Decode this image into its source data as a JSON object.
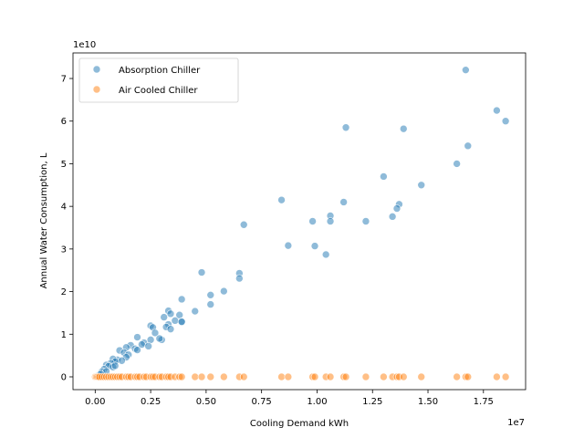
{
  "chart_data": {
    "type": "scatter",
    "xlabel": "Cooling Demand kWh",
    "ylabel": "Annual Water Consumption, L",
    "x_offset_label": "1e7",
    "y_offset_label": "1e10",
    "xlim": [
      -1000000,
      19400000
    ],
    "ylim": [
      -3000000000,
      76000000000
    ],
    "x_ticks": [
      0,
      2500000,
      5000000,
      7500000,
      10000000,
      12500000,
      15000000,
      17500000
    ],
    "x_tick_labels": [
      "0.00",
      "0.25",
      "0.50",
      "0.75",
      "1.00",
      "1.25",
      "1.50",
      "1.75"
    ],
    "y_ticks": [
      0,
      10000000000,
      20000000000,
      30000000000,
      40000000000,
      50000000000,
      60000000000,
      70000000000
    ],
    "y_tick_labels": [
      "0",
      "1",
      "2",
      "3",
      "4",
      "5",
      "6",
      "7"
    ],
    "grid": false,
    "legend_position": "top-left",
    "series": [
      {
        "name": "Absorption Chiller",
        "color": "#1f77b4",
        "x": [
          16700000,
          18100000,
          18500000,
          11300000,
          13900000,
          16800000,
          16300000,
          13000000,
          14700000,
          8400000,
          11200000,
          13700000,
          13600000,
          10600000,
          13400000,
          9800000,
          10600000,
          12200000,
          6700000,
          8700000,
          9900000,
          10400000,
          4800000,
          6500000,
          6500000,
          5800000,
          5200000,
          3900000,
          5200000,
          3300000,
          4500000,
          3400000,
          3100000,
          3800000,
          3600000,
          3900000,
          3900000,
          3300000,
          2500000,
          3200000,
          2600000,
          3400000,
          1900000,
          2700000,
          3000000,
          2900000,
          2500000,
          2200000,
          2100000,
          2400000,
          1600000,
          1800000,
          1900000,
          1400000,
          1100000,
          1300000,
          1500000,
          1400000,
          1000000,
          1200000,
          800000,
          900000,
          700000,
          500000,
          600000,
          800000,
          900000,
          400000,
          300000,
          500000,
          200000,
          100000,
          250000
        ],
        "y": [
          72000000000,
          62500000000,
          60000000000,
          58500000000,
          58200000000,
          54200000000,
          50000000000,
          47000000000,
          45000000000,
          41500000000,
          41000000000,
          40500000000,
          39500000000,
          37800000000,
          37600000000,
          36500000000,
          36500000000,
          36500000000,
          35700000000,
          30800000000,
          30700000000,
          28700000000,
          24500000000,
          24300000000,
          23100000000,
          20100000000,
          19200000000,
          18200000000,
          17000000000,
          15500000000,
          15400000000,
          14800000000,
          14000000000,
          14500000000,
          13200000000,
          13000000000,
          12900000000,
          12300000000,
          12000000000,
          11700000000,
          11600000000,
          11200000000,
          9300000000,
          10300000000,
          8700000000,
          9000000000,
          8700000000,
          8000000000,
          7600000000,
          7200000000,
          7400000000,
          6600000000,
          6300000000,
          6900000000,
          6200000000,
          5700000000,
          5200000000,
          4600000000,
          4000000000,
          3800000000,
          4200000000,
          3600000000,
          3200000000,
          2800000000,
          2500000000,
          2300000000,
          2600000000,
          1800000000,
          1200000000,
          1300000000,
          500000000,
          200000000,
          700000000
        ]
      },
      {
        "name": "Air Cooled Chiller",
        "color": "#ff7f0e",
        "x": [
          0,
          50000,
          100000,
          150000,
          200000,
          300000,
          400000,
          500000,
          600000,
          700000,
          800000,
          900000,
          1000000,
          1100000,
          1200000,
          1400000,
          1500000,
          1600000,
          1800000,
          1900000,
          2000000,
          2200000,
          2300000,
          2500000,
          2600000,
          2700000,
          2900000,
          3000000,
          3200000,
          3300000,
          3400000,
          3600000,
          3800000,
          3900000,
          4500000,
          4800000,
          5200000,
          5800000,
          6500000,
          6700000,
          8400000,
          8700000,
          9800000,
          9900000,
          10400000,
          10600000,
          11200000,
          11300000,
          12200000,
          13000000,
          13400000,
          13600000,
          13700000,
          13900000,
          14700000,
          16300000,
          16700000,
          16800000,
          18100000,
          18500000
        ],
        "y": [
          0,
          0,
          0,
          0,
          0,
          0,
          0,
          0,
          0,
          0,
          0,
          0,
          0,
          0,
          0,
          0,
          0,
          0,
          0,
          0,
          0,
          0,
          0,
          0,
          0,
          0,
          0,
          0,
          0,
          0,
          0,
          0,
          0,
          0,
          0,
          0,
          0,
          0,
          0,
          0,
          0,
          0,
          0,
          0,
          0,
          0,
          0,
          0,
          0,
          0,
          0,
          0,
          0,
          0,
          0,
          0,
          0,
          0,
          0,
          0
        ]
      }
    ]
  }
}
